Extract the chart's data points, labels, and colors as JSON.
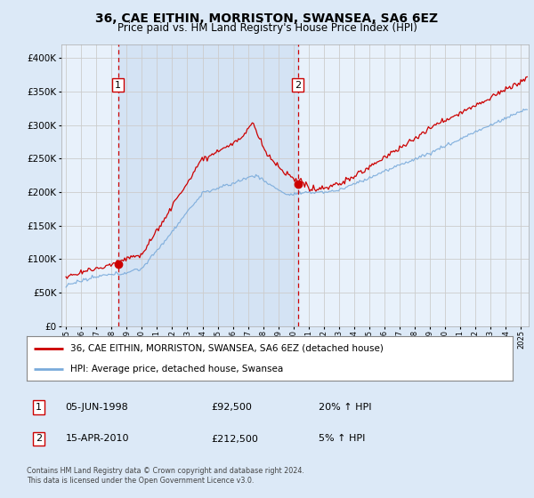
{
  "title": "36, CAE EITHIN, MORRISTON, SWANSEA, SA6 6EZ",
  "subtitle": "Price paid vs. HM Land Registry's House Price Index (HPI)",
  "legend_line1": "36, CAE EITHIN, MORRISTON, SWANSEA, SA6 6EZ (detached house)",
  "legend_line2": "HPI: Average price, detached house, Swansea",
  "sale1_date": "05-JUN-1998",
  "sale1_price": "£92,500",
  "sale1_hpi": "20% ↑ HPI",
  "sale1_year": 1998.43,
  "sale1_value": 92500,
  "sale2_date": "15-APR-2010",
  "sale2_price": "£212,500",
  "sale2_hpi": "5% ↑ HPI",
  "sale2_year": 2010.29,
  "sale2_value": 212500,
  "copyright": "Contains HM Land Registry data © Crown copyright and database right 2024.\nThis data is licensed under the Open Government Licence v3.0.",
  "ylim_max": 420000,
  "xlim_start": 1994.7,
  "xlim_end": 2025.5,
  "fig_bg": "#dce9f7",
  "plot_bg": "#e8f1fb",
  "grid_color": "#cccccc",
  "line_red": "#cc0000",
  "line_blue": "#7aabdb",
  "vline_color": "#cc0000",
  "shade_color": "#c5d9f0"
}
